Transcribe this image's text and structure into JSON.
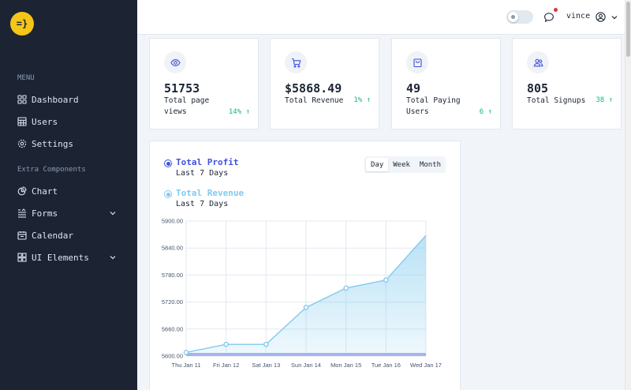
{
  "logo": {
    "text": "=}"
  },
  "sidebar": {
    "menu_title": "MENU",
    "items": [
      {
        "label": "Dashboard",
        "icon": "grid-icon"
      },
      {
        "label": "Users",
        "icon": "table-icon"
      },
      {
        "label": "Settings",
        "icon": "gear-icon"
      }
    ],
    "extra_title": "Extra Components",
    "extra_items": [
      {
        "label": "Chart",
        "icon": "pie-chart-icon"
      },
      {
        "label": "Forms",
        "icon": "form-icon",
        "expandable": true
      },
      {
        "label": "Calendar",
        "icon": "calendar-icon"
      },
      {
        "label": "UI Elements",
        "icon": "layers-icon",
        "expandable": true
      }
    ]
  },
  "header": {
    "user_name": "vince"
  },
  "cards": [
    {
      "value": "51753",
      "label": "Total page views",
      "change": "14%",
      "icon": "eye-icon"
    },
    {
      "value": "$5868.49",
      "label": "Total Revenue",
      "change": "1%",
      "icon": "cart-icon"
    },
    {
      "value": "49",
      "label": "Total Paying Users",
      "change": "6",
      "icon": "bag-icon"
    },
    {
      "value": "805",
      "label": "Total Signups",
      "change": "38",
      "icon": "users-icon"
    }
  ],
  "chart_panel": {
    "legend": [
      {
        "name": "Total Profit",
        "sub": "Last 7 Days",
        "color": "#3c50e0"
      },
      {
        "name": "Total Revenue",
        "sub": "Last 7 Days",
        "color": "#80caee"
      }
    ],
    "ranges": [
      "Day",
      "Week",
      "Month"
    ],
    "active_range": "Day"
  },
  "chart_data": {
    "type": "area",
    "categories": [
      "Thu Jan 11",
      "Fri Jan 12",
      "Sat Jan 13",
      "Sun Jan 14",
      "Mon Jan 15",
      "Tue Jan 16",
      "Wed Jan 17"
    ],
    "series": [
      {
        "name": "Total Revenue",
        "values": [
          5608,
          5626,
          5626,
          5708,
          5751,
          5769,
          5868
        ],
        "color": "#80caee"
      },
      {
        "name": "Total Profit",
        "values": [
          5600,
          5600,
          5600,
          5600,
          5600,
          5600,
          5600
        ],
        "color": "#3c50e0"
      }
    ],
    "yticks": [
      "5600.00",
      "5660.00",
      "5720.00",
      "5780.00",
      "5840.00",
      "5900.00"
    ],
    "ylim": [
      5600,
      5900
    ],
    "grid": true
  }
}
